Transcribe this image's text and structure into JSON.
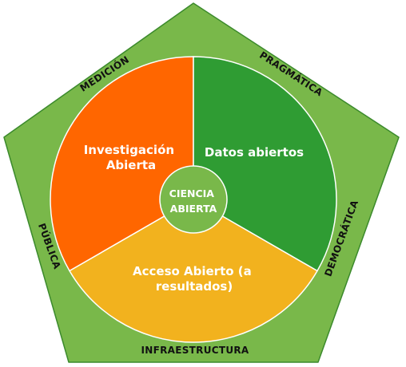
{
  "colors": {
    "pentagon_fill": "#79b84a",
    "pentagon_stroke": "#3b8a2c",
    "segment_stroke": "#ffffff",
    "center_fill": "#79b84a"
  },
  "segments": [
    {
      "lines": [
        "Investigación",
        "Abierta"
      ],
      "color": "#ff6600"
    },
    {
      "lines": [
        "Datos abiertos"
      ],
      "color": "#2f9c33"
    },
    {
      "lines": [
        "Acceso Abierto (a",
        "resultados)"
      ],
      "color": "#f2b21e"
    }
  ],
  "center": {
    "lines": [
      "CIENCIA",
      "ABIERTA"
    ]
  },
  "sides": {
    "medicion": "MEDICIÓN",
    "pragmatica": "PRAGMÁTICA",
    "democratica": "DEMOCRÁTICA",
    "infraestructura": "INFRAESTRUCTURA",
    "publica": "PÚBLICA"
  }
}
